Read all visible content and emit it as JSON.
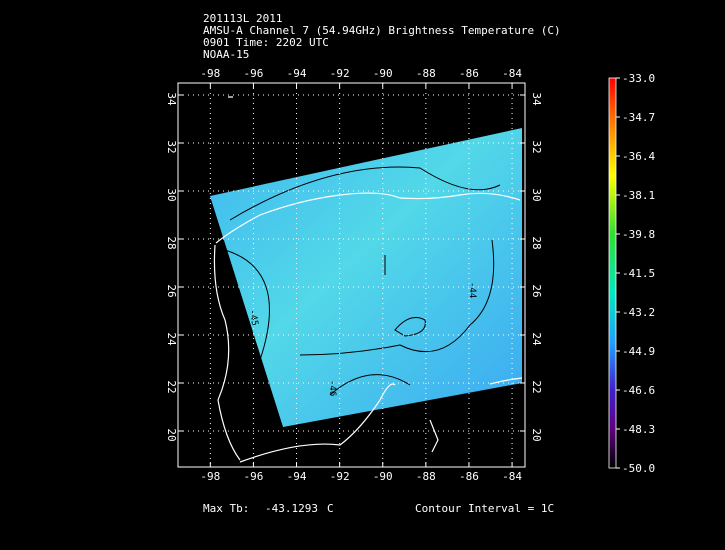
{
  "header": {
    "lines": [
      "201113L 2011",
      "AMSU-A Channel 7 (54.94GHz) Brightness Temperature (C)",
      "0901 Time: 2202 UTC",
      "NOAA-15"
    ]
  },
  "map": {
    "xlim": [
      -99.5,
      -83.4
    ],
    "ylim": [
      18.5,
      34.5
    ],
    "xticks": [
      -98,
      -96,
      -94,
      -92,
      -90,
      -88,
      -86,
      -84
    ],
    "yticks": [
      20,
      22,
      24,
      26,
      28,
      30,
      32,
      34
    ],
    "contour_labels": [
      "-44",
      "-45",
      "-46"
    ]
  },
  "colorbar": {
    "lim": [
      -50,
      -33
    ],
    "ticks": [
      {
        "value": -33,
        "label": "-33.0"
      },
      {
        "value": -34.7,
        "label": "-34.7"
      },
      {
        "value": -36.4,
        "label": "-36.4"
      },
      {
        "value": -38.1,
        "label": "-38.1"
      },
      {
        "value": -39.8,
        "label": "-39.8"
      },
      {
        "value": -41.5,
        "label": "-41.5"
      },
      {
        "value": -43.2,
        "label": "-43.2"
      },
      {
        "value": -44.9,
        "label": "-44.9"
      },
      {
        "value": -46.6,
        "label": "-46.6"
      },
      {
        "value": -48.3,
        "label": "-48.3"
      },
      {
        "value": -50,
        "label": "-50.0"
      }
    ]
  },
  "footer": {
    "max_label": "Max Tb:",
    "max_value": "-43.1293",
    "unit": "C",
    "contour_interval": "Contour Interval = 1C"
  }
}
